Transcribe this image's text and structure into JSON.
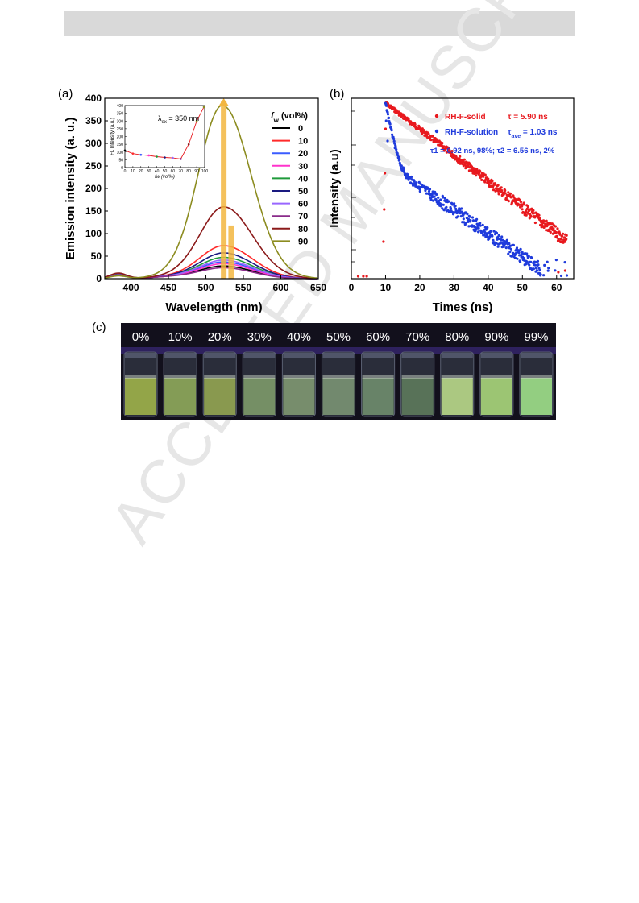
{
  "watermark": "ACCEPTED MANUSCRIPT",
  "panel_labels": {
    "a": "(a)",
    "b": "(b)",
    "c": "(c)"
  },
  "chart_data": [
    {
      "id": "a",
      "type": "line",
      "xlabel": "Wavelength (nm)",
      "ylabel": "Emission intensity (a. u.)",
      "xlim": [
        365,
        650
      ],
      "ylim": [
        0,
        400
      ],
      "xticks": [
        400,
        450,
        500,
        550,
        600,
        650
      ],
      "yticks": [
        0,
        50,
        100,
        150,
        200,
        250,
        300,
        350,
        400
      ],
      "legend_title_main": "f",
      "legend_title_sub": "w",
      "legend_title_rest": " (vol%)",
      "legend_position": "right",
      "series": [
        {
          "name": "0",
          "color": "#000000",
          "peak": 28,
          "center": 524
        },
        {
          "name": "10",
          "color": "#ff2a2a",
          "peak": 73,
          "center": 524
        },
        {
          "name": "20",
          "color": "#3a5cff",
          "peak": 37,
          "center": 524
        },
        {
          "name": "30",
          "color": "#ff33cc",
          "peak": 33,
          "center": 524
        },
        {
          "name": "40",
          "color": "#1f9a3a",
          "peak": 47,
          "center": 524
        },
        {
          "name": "50",
          "color": "#1a1a80",
          "peak": 57,
          "center": 524
        },
        {
          "name": "60",
          "color": "#9966ff",
          "peak": 41,
          "center": 524
        },
        {
          "name": "70",
          "color": "#8a2b8a",
          "peak": 24,
          "center": 524
        },
        {
          "name": "80",
          "color": "#8b1a1a",
          "peak": 159,
          "center": 524
        },
        {
          "name": "90",
          "color": "#8c8c20",
          "peak": 384,
          "center": 522
        }
      ],
      "inset": {
        "annotation_main": "λ",
        "annotation_sub": "ex",
        "annotation_rest": " = 350 nm",
        "xlabel": "fw (vol%)",
        "ylabel": "FL Intensity (a.u.)",
        "xlim": [
          0,
          100
        ],
        "ylim": [
          0,
          400
        ],
        "xticks": [
          0,
          10,
          20,
          30,
          40,
          50,
          60,
          70,
          80,
          90,
          100
        ],
        "yticks": [
          0,
          50,
          100,
          150,
          200,
          250,
          300,
          350,
          400
        ],
        "x": [
          0,
          10,
          20,
          30,
          40,
          50,
          60,
          70,
          80,
          90,
          99
        ],
        "y": [
          110,
          90,
          82,
          78,
          70,
          65,
          62,
          55,
          150,
          300,
          390
        ]
      }
    },
    {
      "id": "b",
      "type": "scatter",
      "xlabel": "Times (ns)",
      "ylabel": "Intensity (a.u)",
      "xlim": [
        0,
        65
      ],
      "xticks": [
        0,
        10,
        20,
        30,
        40,
        50,
        60
      ],
      "yscale": "log",
      "series": [
        {
          "name": "RH-F-solid",
          "color": "#e8191e",
          "tau": 5.9
        },
        {
          "name": "RH-F-solution",
          "color": "#1f3bdc",
          "tau": 1.03
        }
      ],
      "annotations": {
        "solid_tau": "τ = 5.90 ns",
        "solution_tau_main": "τ",
        "solution_tau_sub": "ave",
        "solution_tau_rest": " = 1.03 ns",
        "components": "τ1 = 0.92 ns, 98%;  τ2 = 6.56 ns, 2%"
      }
    }
  ],
  "photo": {
    "labels": [
      "0%",
      "10%",
      "20%",
      "30%",
      "40%",
      "50%",
      "60%",
      "70%",
      "80%",
      "90%",
      "99%"
    ],
    "liquid_colors": [
      "#9fb34a",
      "#8ea85a",
      "#93a552",
      "#7d9a6a",
      "#7f9872",
      "#7a9474",
      "#6f8d6e",
      "#5d7a5c",
      "#b9d98a",
      "#a9d67a",
      "#9fe08a"
    ]
  }
}
